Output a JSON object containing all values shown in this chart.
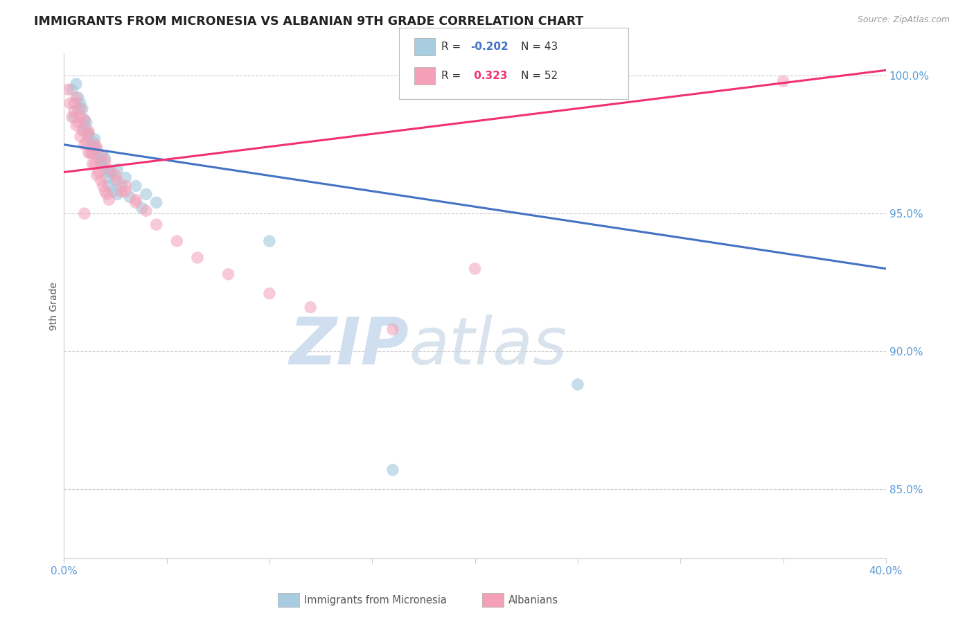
{
  "title": "IMMIGRANTS FROM MICRONESIA VS ALBANIAN 9TH GRADE CORRELATION CHART",
  "source": "Source: ZipAtlas.com",
  "ylabel": "9th Grade",
  "xmin": 0.0,
  "xmax": 0.4,
  "ymin": 0.825,
  "ymax": 1.008,
  "blue_R": -0.202,
  "blue_N": 43,
  "pink_R": 0.323,
  "pink_N": 52,
  "blue_color": "#a8cce0",
  "pink_color": "#f4a0b8",
  "blue_line_color": "#4472c4",
  "pink_line_color": "#f03070",
  "legend_label_blue": "Immigrants from Micronesia",
  "legend_label_pink": "Albanians",
  "blue_line_x0": 0.0,
  "blue_line_y0": 0.975,
  "blue_line_x1": 0.4,
  "blue_line_y1": 0.93,
  "pink_line_x0": 0.0,
  "pink_line_y0": 0.965,
  "pink_line_x1": 0.4,
  "pink_line_y1": 1.002,
  "blue_points_x": [
    0.005,
    0.007,
    0.009,
    0.01,
    0.011,
    0.012,
    0.013,
    0.014,
    0.015,
    0.016,
    0.017,
    0.018,
    0.019,
    0.02,
    0.021,
    0.022,
    0.023,
    0.024,
    0.025,
    0.026,
    0.006,
    0.008,
    0.01,
    0.012,
    0.015,
    0.018,
    0.022,
    0.028,
    0.032,
    0.038,
    0.004,
    0.007,
    0.01,
    0.014,
    0.02,
    0.026,
    0.03,
    0.035,
    0.04,
    0.045,
    0.25,
    0.1,
    0.16
  ],
  "blue_points_y": [
    0.985,
    0.992,
    0.988,
    0.98,
    0.983,
    0.978,
    0.975,
    0.972,
    0.977,
    0.973,
    0.97,
    0.968,
    0.971,
    0.966,
    0.963,
    0.96,
    0.965,
    0.958,
    0.962,
    0.957,
    0.997,
    0.99,
    0.984,
    0.979,
    0.974,
    0.969,
    0.965,
    0.96,
    0.956,
    0.952,
    0.995,
    0.988,
    0.982,
    0.976,
    0.97,
    0.966,
    0.963,
    0.96,
    0.957,
    0.954,
    0.888,
    0.94,
    0.857
  ],
  "pink_points_x": [
    0.004,
    0.006,
    0.008,
    0.01,
    0.012,
    0.014,
    0.016,
    0.018,
    0.02,
    0.022,
    0.003,
    0.005,
    0.007,
    0.009,
    0.011,
    0.013,
    0.015,
    0.017,
    0.019,
    0.021,
    0.006,
    0.008,
    0.01,
    0.012,
    0.015,
    0.018,
    0.022,
    0.026,
    0.03,
    0.035,
    0.002,
    0.005,
    0.008,
    0.012,
    0.016,
    0.02,
    0.025,
    0.03,
    0.035,
    0.04,
    0.045,
    0.055,
    0.065,
    0.08,
    0.1,
    0.12,
    0.16,
    0.2,
    0.35,
    0.028,
    0.014,
    0.01
  ],
  "pink_points_y": [
    0.985,
    0.982,
    0.978,
    0.975,
    0.972,
    0.968,
    0.964,
    0.962,
    0.958,
    0.955,
    0.99,
    0.987,
    0.983,
    0.98,
    0.976,
    0.972,
    0.968,
    0.965,
    0.96,
    0.957,
    0.992,
    0.988,
    0.984,
    0.98,
    0.975,
    0.971,
    0.966,
    0.962,
    0.958,
    0.954,
    0.995,
    0.99,
    0.985,
    0.979,
    0.974,
    0.969,
    0.964,
    0.96,
    0.955,
    0.951,
    0.946,
    0.94,
    0.934,
    0.928,
    0.921,
    0.916,
    0.908,
    0.93,
    0.998,
    0.958,
    0.972,
    0.95
  ],
  "watermark_zip": "ZIP",
  "watermark_atlas": "atlas",
  "watermark_color": "#d0dff0",
  "background_color": "#ffffff",
  "grid_color": "#cccccc",
  "ytick_color": "#5b9bd5",
  "xtick_color": "#5b9bd5"
}
